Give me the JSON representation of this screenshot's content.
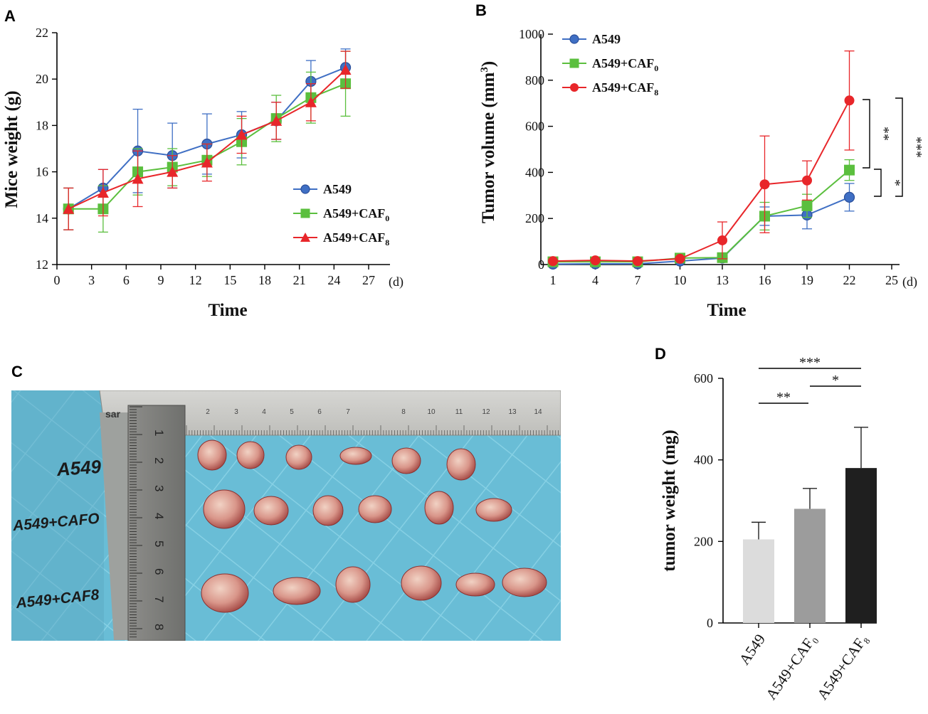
{
  "panels": {
    "A": "A",
    "B": "B",
    "C": "C",
    "D": "D"
  },
  "chart_data": [
    {
      "id": "A",
      "type": "line",
      "title": "",
      "xlabel": "Time",
      "x_unit": "(d)",
      "ylabel": "Mice weight (g)",
      "xlim": [
        0,
        27
      ],
      "ylim": [
        12,
        22
      ],
      "xticks": [
        "0",
        "3",
        "6",
        "9",
        "12",
        "15",
        "18",
        "21",
        "24",
        "27"
      ],
      "yticks": [
        "12",
        "14",
        "16",
        "18",
        "20",
        "22"
      ],
      "legend_position": "center-right",
      "x": [
        1,
        4,
        7,
        10,
        13,
        16,
        19,
        22,
        25
      ],
      "series": [
        {
          "name": "A549",
          "sub": "",
          "marker": "circle",
          "color": "#3f6fc4",
          "values": [
            14.4,
            15.3,
            16.9,
            16.7,
            17.2,
            17.6,
            18.2,
            19.9,
            20.5
          ],
          "errors": [
            0.9,
            0.8,
            1.8,
            1.4,
            1.3,
            1.0,
            0.8,
            0.9,
            0.8
          ]
        },
        {
          "name": "A549+CAF",
          "sub": "0",
          "marker": "square",
          "color": "#5bbf3e",
          "values": [
            14.4,
            14.4,
            16.0,
            16.2,
            16.5,
            17.3,
            18.3,
            19.2,
            19.8
          ],
          "errors": [
            0.9,
            1.0,
            1.0,
            0.8,
            0.7,
            1.0,
            1.0,
            1.1,
            1.4
          ]
        },
        {
          "name": "A549+CAF",
          "sub": "8",
          "marker": "triangle",
          "color": "#e8262a",
          "values": [
            14.4,
            15.1,
            15.7,
            16.0,
            16.4,
            17.6,
            18.2,
            19.0,
            20.4
          ],
          "errors": [
            0.9,
            1.0,
            1.2,
            0.7,
            0.8,
            0.8,
            0.8,
            0.8,
            0.8
          ]
        }
      ]
    },
    {
      "id": "B",
      "type": "line",
      "title": "",
      "xlabel": "Time",
      "x_unit": "(d)",
      "ylabel": "Tumor volume (mm",
      "ylabel_sup": "3",
      "ylabel_end": ")",
      "xlim": [
        1,
        25
      ],
      "ylim": [
        0,
        1000
      ],
      "xticks": [
        "1",
        "4",
        "7",
        "10",
        "13",
        "16",
        "19",
        "22",
        "25"
      ],
      "yticks": [
        "0",
        "200",
        "400",
        "600",
        "800",
        "1000"
      ],
      "legend_position": "top-left",
      "x": [
        1,
        4,
        7,
        10,
        13,
        16,
        19,
        22
      ],
      "series": [
        {
          "name": "A549",
          "sub": "",
          "marker": "circle",
          "color": "#3f6fc4",
          "values": [
            2,
            3,
            3,
            15,
            28,
            210,
            215,
            292
          ],
          "errors": [
            2,
            2,
            2,
            5,
            8,
            40,
            60,
            60
          ]
        },
        {
          "name": "A549+CAF",
          "sub": "0",
          "marker": "square",
          "color": "#5bbf3e",
          "values": [
            12,
            12,
            12,
            28,
            30,
            210,
            255,
            410
          ],
          "errors": [
            4,
            4,
            4,
            6,
            8,
            60,
            50,
            45
          ]
        },
        {
          "name": "A549+CAF",
          "sub": "8",
          "marker": "circle",
          "color": "#e8262a",
          "values": [
            15,
            18,
            15,
            25,
            105,
            348,
            365,
            712
          ],
          "errors": [
            4,
            4,
            4,
            6,
            80,
            210,
            85,
            215
          ]
        }
      ],
      "significance": [
        "**",
        "*",
        "***"
      ]
    },
    {
      "id": "D",
      "type": "bar",
      "title": "",
      "xlabel": "",
      "ylabel": "tumor weight (mg)",
      "ylim": [
        0,
        600
      ],
      "yticks": [
        "0",
        "200",
        "400",
        "600"
      ],
      "categories": [
        "A549",
        "A549+CAF₀",
        "A549+CAF₈"
      ],
      "values": [
        205,
        280,
        380
      ],
      "errors": [
        42,
        50,
        100
      ],
      "colors": [
        "#dcdcdc",
        "#9c9c9c",
        "#1f1f1f"
      ],
      "significance": [
        "***",
        "**",
        "*"
      ]
    }
  ],
  "photo": {
    "row_labels": [
      "A549",
      "A549+CAFO",
      "A549+CAF8"
    ],
    "ruler_label": "sar",
    "ruler_h_numbers": [
      "2",
      "3",
      "4",
      "5",
      "6",
      "7",
      "8",
      "10",
      "11",
      "12",
      "13",
      "14"
    ],
    "ruler_v_numbers": [
      "1",
      "2",
      "3",
      "4",
      "5",
      "6",
      "7",
      "8"
    ]
  }
}
